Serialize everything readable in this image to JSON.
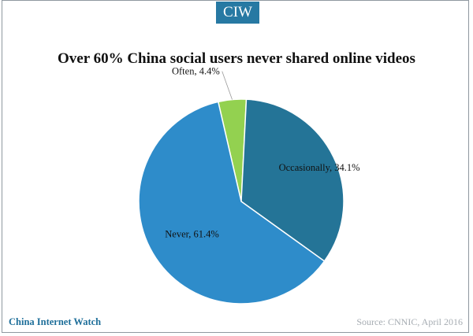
{
  "badge": {
    "text": "CIW"
  },
  "footer": {
    "brand": "China Internet Watch",
    "source": "Source: CNNIC, April 2016"
  },
  "colors": {
    "often": "#93d150",
    "occasionally": "#247497",
    "never": "#2e8cca",
    "badge": "#2779a3"
  },
  "chart_data": {
    "type": "pie",
    "title": "Over 60% China social users never shared online videos",
    "slices": [
      {
        "label": "Often",
        "value": 4.4,
        "display": "Often, 4.4%",
        "color": "#93d150"
      },
      {
        "label": "Occasionally",
        "value": 34.1,
        "display": "Occasionally, 34.1%",
        "color": "#247497"
      },
      {
        "label": "Never",
        "value": 61.4,
        "display": "Never, 61.4%",
        "color": "#2e8cca"
      }
    ],
    "legend": "none",
    "start_angle_deg": -13
  }
}
